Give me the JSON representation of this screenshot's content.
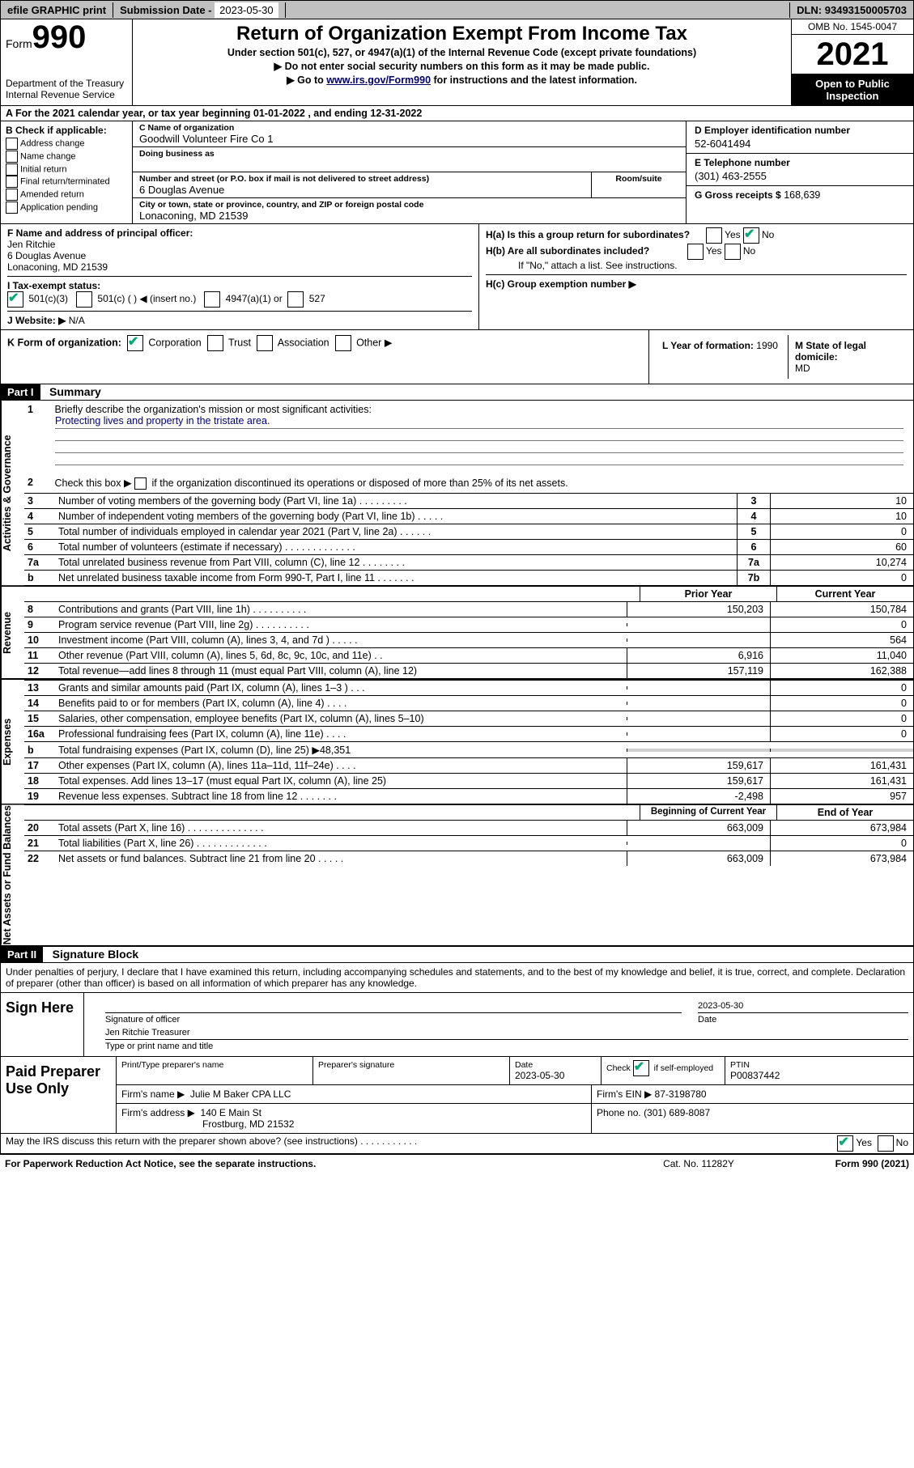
{
  "topbar": {
    "efile_label": "efile GRAPHIC print",
    "sub_label": "Submission Date -",
    "sub_date": "2023-05-30",
    "dln_label": "DLN:",
    "dln": "93493150005703"
  },
  "header": {
    "form_text": "Form",
    "form_num": "990",
    "dept": "Department of the Treasury",
    "irs": "Internal Revenue Service",
    "title": "Return of Organization Exempt From Income Tax",
    "subtitle": "Under section 501(c), 527, or 4947(a)(1) of the Internal Revenue Code (except private foundations)",
    "note1": "▶ Do not enter social security numbers on this form as it may be made public.",
    "note2_pre": "▶ Go to",
    "note2_link": "www.irs.gov/Form990",
    "note2_post": "for instructions and the latest information.",
    "omb": "OMB No. 1545-0047",
    "year": "2021",
    "inspect1": "Open to Public",
    "inspect2": "Inspection"
  },
  "row_a": "A For the 2021 calendar year, or tax year beginning 01-01-2022  , and ending 12-31-2022",
  "col_b": {
    "hdr": "B Check if applicable:",
    "items": [
      "Address change",
      "Name change",
      "Initial return",
      "Final return/terminated",
      "Amended return",
      "Application pending"
    ]
  },
  "col_c": {
    "name_lbl": "C Name of organization",
    "name": "Goodwill Volunteer Fire Co 1",
    "dba_lbl": "Doing business as",
    "addr_lbl": "Number and street (or P.O. box if mail is not delivered to street address)",
    "room_lbl": "Room/suite",
    "addr": "6 Douglas Avenue",
    "city_lbl": "City or town, state or province, country, and ZIP or foreign postal code",
    "city": "Lonaconing, MD  21539"
  },
  "col_d": {
    "lbl": "D Employer identification number",
    "val": "52-6041494"
  },
  "col_e": {
    "lbl": "E Telephone number",
    "val": "(301) 463-2555"
  },
  "col_g": {
    "lbl": "G Gross receipts $",
    "val": "168,639"
  },
  "col_f": {
    "lbl": "F Name and address of principal officer:",
    "l1": "Jen Ritchie",
    "l2": "6 Douglas Avenue",
    "l3": "Lonaconing, MD  21539"
  },
  "col_h": {
    "a_lbl": "H(a)  Is this a group return for subordinates?",
    "b_lbl": "H(b)  Are all subordinates included?",
    "b_note": "If \"No,\" attach a list. See instructions.",
    "c_lbl": "H(c)  Group exemption number ▶",
    "yes": "Yes",
    "no": "No"
  },
  "row_i": {
    "lbl": "I   Tax-exempt status:",
    "o1": "501(c)(3)",
    "o2": "501(c) (   ) ◀ (insert no.)",
    "o3": "4947(a)(1) or",
    "o4": "527"
  },
  "row_j": {
    "lbl": "J   Website: ▶",
    "val": "N/A"
  },
  "row_k": {
    "lbl": "K Form of organization:",
    "o1": "Corporation",
    "o2": "Trust",
    "o3": "Association",
    "o4": "Other ▶"
  },
  "row_l": {
    "lbl": "L Year of formation:",
    "val": "1990"
  },
  "row_m": {
    "lbl": "M State of legal domicile:",
    "val": "MD"
  },
  "part1": {
    "hdr": "Part I",
    "title": "Summary",
    "vtab_gov": "Activities & Governance",
    "vtab_rev": "Revenue",
    "vtab_exp": "Expenses",
    "vtab_net": "Net Assets or Fund Balances",
    "l1": "Briefly describe the organization's mission or most significant activities:",
    "mission": "Protecting lives and property in the tristate area.",
    "l2": "Check this box ▶       if the organization discontinued its operations or disposed of more than 25% of its net assets.",
    "lines_gov": [
      {
        "n": "3",
        "d": "Number of voting members of the governing body (Part VI, line 1a)  .   .   .   .   .   .   .   .   .",
        "c": "3",
        "v": "10"
      },
      {
        "n": "4",
        "d": "Number of independent voting members of the governing body (Part VI, line 1b)  .   .   .   .   .",
        "c": "4",
        "v": "10"
      },
      {
        "n": "5",
        "d": "Total number of individuals employed in calendar year 2021 (Part V, line 2a)  .   .   .   .   .   .",
        "c": "5",
        "v": "0"
      },
      {
        "n": "6",
        "d": "Total number of volunteers (estimate if necessary)  .   .   .   .   .   .   .   .   .   .   .   .   .",
        "c": "6",
        "v": "60"
      },
      {
        "n": "7a",
        "d": "Total unrelated business revenue from Part VIII, column (C), line 12  .   .   .   .   .   .   .   .",
        "c": "7a",
        "v": "10,274"
      },
      {
        "n": "b",
        "d": "Net unrelated business taxable income from Form 990-T, Part I, line 11  .   .   .   .   .   .   .",
        "c": "7b",
        "v": "0"
      }
    ],
    "py_hdr": "Prior Year",
    "cy_hdr": "Current Year",
    "lines_rev": [
      {
        "n": "8",
        "d": "Contributions and grants (Part VIII, line 1h)  .   .   .   .   .   .   .   .   .   .",
        "py": "150,203",
        "cy": "150,784"
      },
      {
        "n": "9",
        "d": "Program service revenue (Part VIII, line 2g)   .   .   .   .   .   .   .   .   .   .",
        "py": "",
        "cy": "0"
      },
      {
        "n": "10",
        "d": "Investment income (Part VIII, column (A), lines 3, 4, and 7d )   .   .   .   .   .",
        "py": "",
        "cy": "564"
      },
      {
        "n": "11",
        "d": "Other revenue (Part VIII, column (A), lines 5, 6d, 8c, 9c, 10c, and 11e)  .   .",
        "py": "6,916",
        "cy": "11,040"
      },
      {
        "n": "12",
        "d": "Total revenue—add lines 8 through 11 (must equal Part VIII, column (A), line 12)",
        "py": "157,119",
        "cy": "162,388"
      }
    ],
    "lines_exp": [
      {
        "n": "13",
        "d": "Grants and similar amounts paid (Part IX, column (A), lines 1–3 )  .   .   .",
        "py": "",
        "cy": "0"
      },
      {
        "n": "14",
        "d": "Benefits paid to or for members (Part IX, column (A), line 4)  .   .   .   .",
        "py": "",
        "cy": "0"
      },
      {
        "n": "15",
        "d": "Salaries, other compensation, employee benefits (Part IX, column (A), lines 5–10)",
        "py": "",
        "cy": "0"
      },
      {
        "n": "16a",
        "d": "Professional fundraising fees (Part IX, column (A), line 11e)  .   .   .   .",
        "py": "",
        "cy": "0"
      },
      {
        "n": "b",
        "d": "Total fundraising expenses (Part IX, column (D), line 25) ▶48,351",
        "py": "gray",
        "cy": "gray"
      },
      {
        "n": "17",
        "d": "Other expenses (Part IX, column (A), lines 11a–11d, 11f–24e)  .   .   .   .",
        "py": "159,617",
        "cy": "161,431"
      },
      {
        "n": "18",
        "d": "Total expenses. Add lines 13–17 (must equal Part IX, column (A), line 25)",
        "py": "159,617",
        "cy": "161,431"
      },
      {
        "n": "19",
        "d": "Revenue less expenses. Subtract line 18 from line 12  .   .   .   .   .   .   .",
        "py": "-2,498",
        "cy": "957"
      }
    ],
    "by_hdr": "Beginning of Current Year",
    "ey_hdr": "End of Year",
    "lines_net": [
      {
        "n": "20",
        "d": "Total assets (Part X, line 16)  .   .   .   .   .   .   .   .   .   .   .   .   .   .",
        "py": "663,009",
        "cy": "673,984"
      },
      {
        "n": "21",
        "d": "Total liabilities (Part X, line 26)  .   .   .   .   .   .   .   .   .   .   .   .   .",
        "py": "",
        "cy": "0"
      },
      {
        "n": "22",
        "d": "Net assets or fund balances. Subtract line 21 from line 20  .   .   .   .   .",
        "py": "663,009",
        "cy": "673,984"
      }
    ]
  },
  "part2": {
    "hdr": "Part II",
    "title": "Signature Block",
    "declare": "Under penalties of perjury, I declare that I have examined this return, including accompanying schedules and statements, and to the best of my knowledge and belief, it is true, correct, and complete. Declaration of preparer (other than officer) is based on all information of which preparer has any knowledge.",
    "sign_here": "Sign Here",
    "sig_officer": "Signature of officer",
    "date_lbl": "Date",
    "sig_date": "2023-05-30",
    "name_title": "Jen Ritchie  Treasurer",
    "name_title_lbl": "Type or print name and title",
    "paid": "Paid Preparer Use Only",
    "prep_name_lbl": "Print/Type preparer's name",
    "prep_sig_lbl": "Preparer's signature",
    "prep_date_lbl": "Date",
    "prep_date": "2023-05-30",
    "self_emp_lbl": "Check        if self-employed",
    "ptin_lbl": "PTIN",
    "ptin": "P00837442",
    "firm_name_lbl": "Firm's name   ▶",
    "firm_name": "Julie M Baker CPA LLC",
    "firm_ein_lbl": "Firm's EIN ▶",
    "firm_ein": "87-3198780",
    "firm_addr_lbl": "Firm's address ▶",
    "firm_addr1": "140 E Main St",
    "firm_addr2": "Frostburg, MD  21532",
    "phone_lbl": "Phone no.",
    "phone": "(301) 689-8087"
  },
  "footer": {
    "q": "May the IRS discuss this return with the preparer shown above? (see instructions)   .   .   .   .   .   .   .   .   .   .   .",
    "yes": "Yes",
    "no": "No",
    "paperwork": "For Paperwork Reduction Act Notice, see the separate instructions.",
    "cat": "Cat. No. 11282Y",
    "form": "Form 990 (2021)"
  }
}
